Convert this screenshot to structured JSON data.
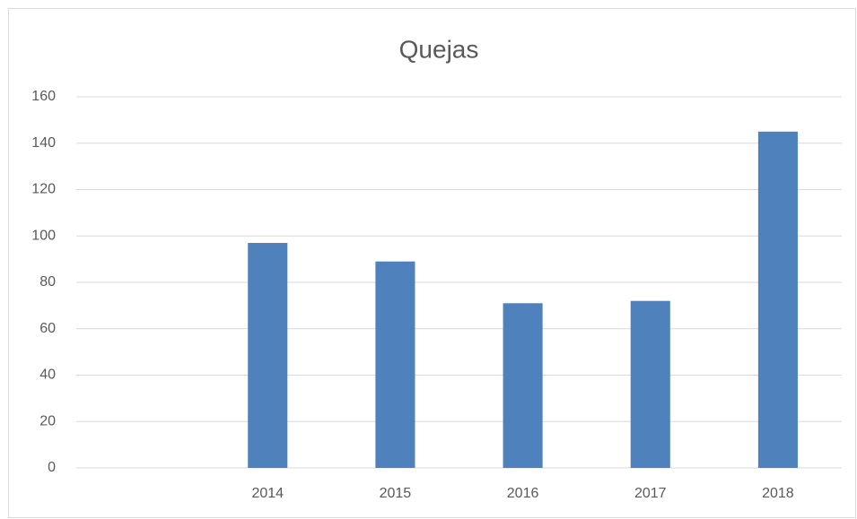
{
  "chart_data": {
    "type": "bar",
    "title": "Quejas",
    "categories": [
      null,
      "2014",
      "2015",
      "2016",
      "2017",
      "2018"
    ],
    "values": [
      null,
      97,
      89,
      71,
      72,
      145
    ],
    "color": "#4f81bd",
    "ylim": [
      0,
      160
    ],
    "yticks": [
      0,
      20,
      40,
      60,
      80,
      100,
      120,
      140,
      160
    ],
    "grid": true
  }
}
